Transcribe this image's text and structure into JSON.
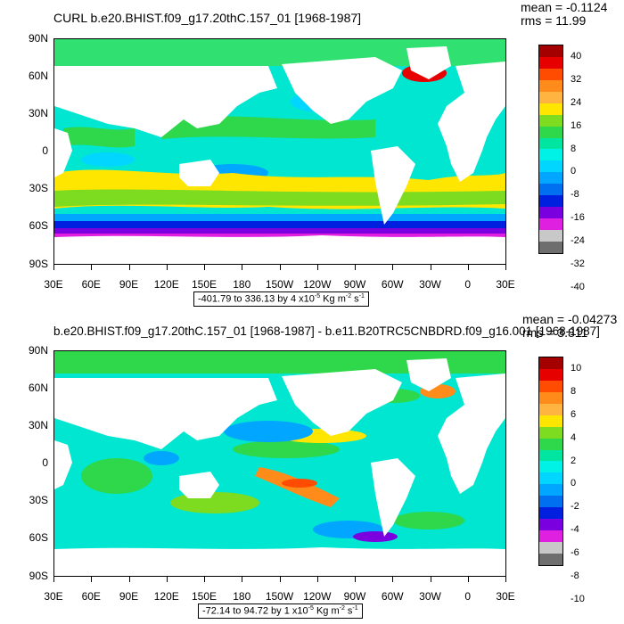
{
  "panels": [
    {
      "title": "CURL b.e20.BHIST.f09_g17.20thC.157_01 [1968-1987]",
      "mean_label": "mean = -0.1124",
      "rms_label": "rms = 11.99",
      "lat_labels": [
        "90N",
        "60N",
        "30N",
        "0",
        "30S",
        "60S",
        "90S"
      ],
      "lon_labels": [
        "30E",
        "60E",
        "90E",
        "120E",
        "150E",
        "180",
        "150W",
        "120W",
        "90W",
        "60W",
        "30W",
        "0",
        "30E"
      ],
      "range_text": "-401.79 to 336.13 by 4 x10",
      "range_exp": "-5",
      "range_units": " Kg m",
      "range_exp2": "-2",
      "range_s": " s",
      "range_exp3": "-1",
      "colorbar_labels": [
        "40",
        "32",
        "24",
        "16",
        "8",
        "0",
        "-8",
        "-16",
        "-24",
        "-32",
        "-40"
      ]
    },
    {
      "title": "b.e20.BHIST.f09_g17.20thC.157_01 [1968-1987] - b.e11.B20TRC5CNBDRD.f09_g16.001 [1968-1987]",
      "mean_label": "mean = -0.04273",
      "rms_label": "rms = 3.811",
      "lat_labels": [
        "90N",
        "60N",
        "30N",
        "0",
        "30S",
        "60S",
        "90S"
      ],
      "lon_labels": [
        "30E",
        "60E",
        "90E",
        "120E",
        "150E",
        "180",
        "150W",
        "120W",
        "90W",
        "60W",
        "30W",
        "0",
        "30E"
      ],
      "range_text": "-72.14 to 94.72 by 1 x10",
      "range_exp": "-5",
      "range_units": " Kg m",
      "range_exp2": "-2",
      "range_s": " s",
      "range_exp3": "-1",
      "colorbar_labels": [
        "10",
        "8",
        "6",
        "4",
        "2",
        "0",
        "-2",
        "-4",
        "-6",
        "-8",
        "-10"
      ]
    }
  ],
  "colorbar_colors": [
    "#a50000",
    "#e60000",
    "#ff4c00",
    "#ff8c1a",
    "#ffb340",
    "#ffe600",
    "#7ddc1f",
    "#2ed84a",
    "#00e6a0",
    "#00f2e6",
    "#00d6ff",
    "#00a6ff",
    "#0070f0",
    "#0020e0",
    "#7a00e0",
    "#e020e0",
    "#c8c8c8",
    "#6e6e6e"
  ]
}
